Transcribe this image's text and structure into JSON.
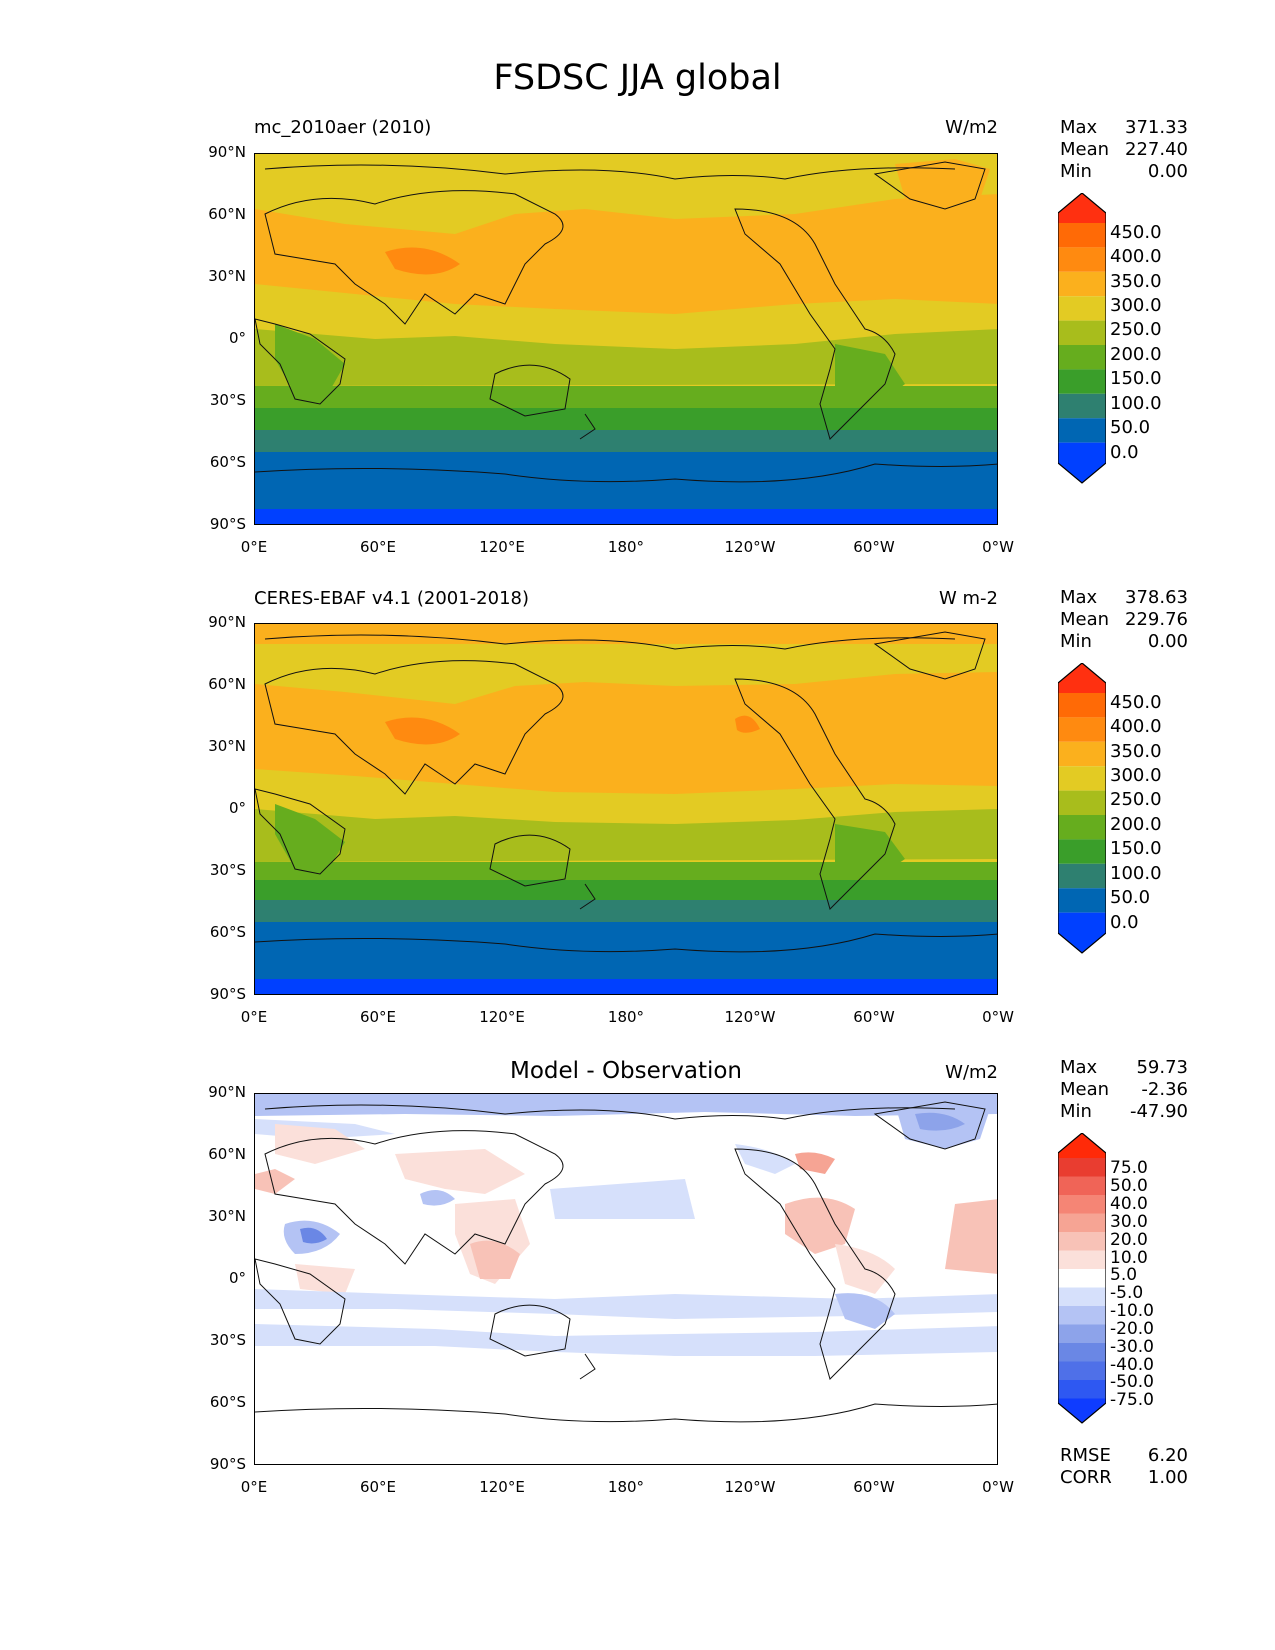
{
  "title": "FSDSC JJA global",
  "axes": {
    "yticks": [
      "90°N",
      "60°N",
      "30°N",
      "0°",
      "30°S",
      "60°S",
      "90°S"
    ],
    "xticks": [
      "0°E",
      "60°E",
      "120°E",
      "180°",
      "120°W",
      "60°W",
      "0°W"
    ]
  },
  "panels": [
    {
      "title": "mc_2010aer (2010)",
      "units": "W/m2",
      "stats": {
        "max_label": "Max",
        "max": "371.33",
        "mean_label": "Mean",
        "mean": "227.40",
        "min_label": "Min",
        "min": "0.00"
      },
      "colorbar_labels": [
        "450.0",
        "400.0",
        "350.0",
        "300.0",
        "250.0",
        "200.0",
        "150.0",
        "100.0",
        "50.0",
        "0.0"
      ]
    },
    {
      "title": "CERES-EBAF v4.1 (2001-2018)",
      "units": "W m-2",
      "stats": {
        "max_label": "Max",
        "max": "378.63",
        "mean_label": "Mean",
        "mean": "229.76",
        "min_label": "Min",
        "min": "0.00"
      },
      "colorbar_labels": [
        "450.0",
        "400.0",
        "350.0",
        "300.0",
        "250.0",
        "200.0",
        "150.0",
        "100.0",
        "50.0",
        "0.0"
      ]
    },
    {
      "title": "Model - Observation",
      "units": "W/m2",
      "stats": {
        "max_label": "Max",
        "max": "59.73",
        "mean_label": "Mean",
        "mean": "-2.36",
        "min_label": "Min",
        "min": "-47.90"
      },
      "colorbar_labels": [
        "75.0",
        "50.0",
        "40.0",
        "30.0",
        "20.0",
        "10.0",
        "5.0",
        "-5.0",
        "-10.0",
        "-20.0",
        "-30.0",
        "-40.0",
        "-50.0",
        "-75.0"
      ],
      "metrics": {
        "rmse_label": "RMSE",
        "rmse": "6.20",
        "corr_label": "CORR",
        "corr": "1.00"
      }
    }
  ],
  "colors": {
    "field_scale": [
      "#0040ff",
      "#0066b3",
      "#2e8070",
      "#3a9e2a",
      "#66ad1e",
      "#a8bd1c",
      "#e3cb23",
      "#fbb01d",
      "#ff8a10",
      "#ff6a06",
      "#ff3010"
    ],
    "diff_scale": [
      "#0f3cff",
      "#2e58f2",
      "#4f70e8",
      "#6a87e5",
      "#8da3ea",
      "#b4c3f4",
      "#d6e0fb",
      "#ffffff",
      "#fbe0da",
      "#f8c2b7",
      "#f6a494",
      "#f58575",
      "#f06457",
      "#e93d30",
      "#ff2a08"
    ],
    "frame": "#000000"
  }
}
